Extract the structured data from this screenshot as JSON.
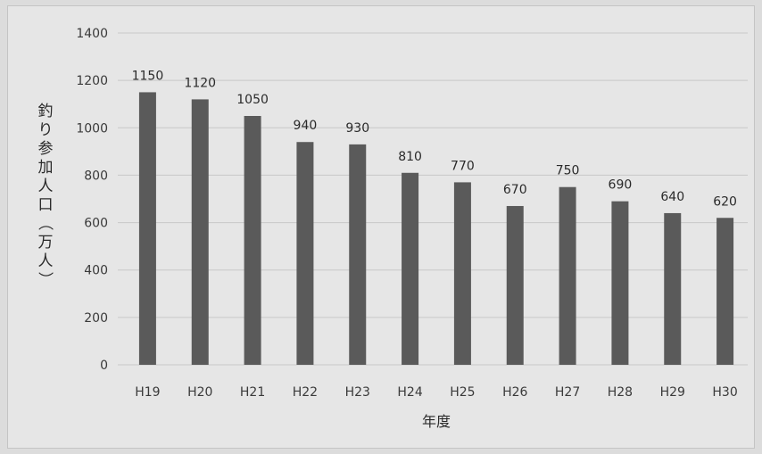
{
  "chart_data": {
    "type": "bar",
    "categories": [
      "H19",
      "H20",
      "H21",
      "H22",
      "H23",
      "H24",
      "H25",
      "H26",
      "H27",
      "H28",
      "H29",
      "H30"
    ],
    "values": [
      1150,
      1120,
      1050,
      940,
      930,
      810,
      770,
      670,
      750,
      690,
      640,
      620
    ],
    "xlabel": "年度",
    "ylabel": "釣り参加人口（万人）",
    "ylim": [
      0,
      1400
    ],
    "yticks": [
      0,
      200,
      400,
      600,
      800,
      1000,
      1200,
      1400
    ],
    "grid": true,
    "legend": "none",
    "bar_color": "#5a5a5a",
    "grid_color": "#c8c8c8",
    "show_data_labels": true
  }
}
